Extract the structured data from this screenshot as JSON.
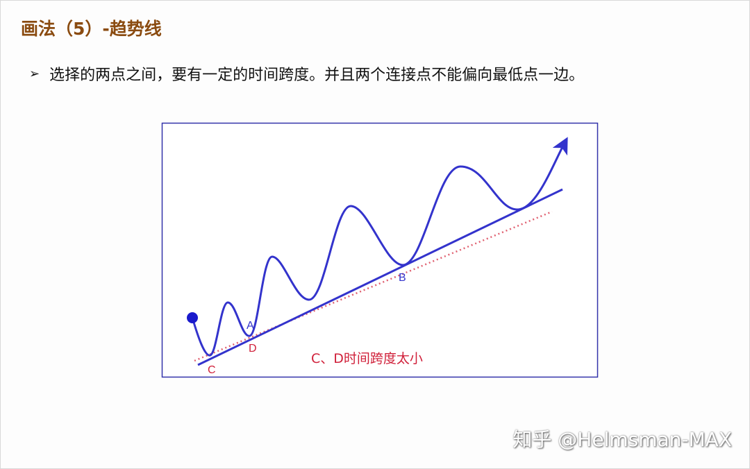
{
  "slide": {
    "title": "画法（5）-趋势线",
    "bullet_icon": "arrowhead-bullet-icon",
    "bullet_text": "选择的两点之间，要有一定的时间跨度。并且两个连接点不能偏向最低点一边。"
  },
  "diagram": {
    "labels": {
      "a": "A",
      "b": "B",
      "c": "C",
      "d": "D"
    },
    "caption": "C、D时间跨度太小",
    "colors": {
      "curve": "#3333cc",
      "trendline": "#3333cc",
      "dotted_line": "#e06070",
      "label_red": "#d0203a",
      "border": "#3333aa",
      "title": "#8a4b10"
    }
  },
  "watermark": "知乎 @Helmsman-MAX"
}
